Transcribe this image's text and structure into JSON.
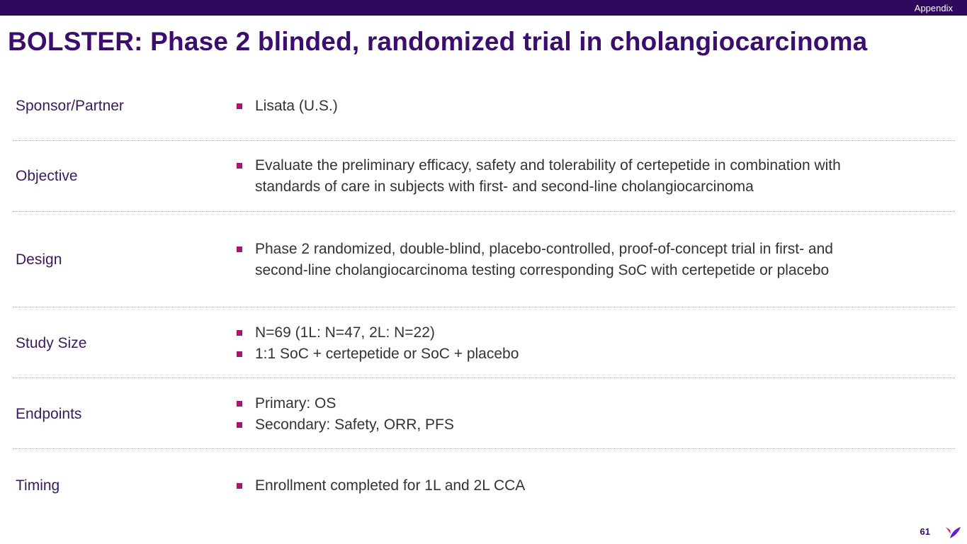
{
  "header": {
    "section": "Appendix",
    "title": "BOLSTER: Phase 2 blinded, randomized trial in cholangiocarcinoma"
  },
  "rows": [
    {
      "label": "Sponsor/Partner",
      "bullets": [
        "Lisata (U.S.)"
      ]
    },
    {
      "label": "Objective",
      "bullets": [
        "Evaluate the preliminary efficacy, safety and tolerability of certepetide in combination with",
        "standards of care in subjects with first- and second-line cholangiocarcinoma"
      ]
    },
    {
      "label": "Design",
      "bullets": [
        "Phase 2 randomized, double-blind, placebo-controlled, proof-of-concept trial in first- and",
        "second-line cholangiocarcinoma testing corresponding SoC with certepetide or placebo"
      ]
    },
    {
      "label": "Study Size",
      "bullets": [
        "N=69 (1L: N=47, 2L: N=22)",
        "1:1 SoC + certepetide or SoC + placebo"
      ]
    },
    {
      "label": "Endpoints",
      "bullets": [
        "Primary: OS",
        "Secondary:  Safety, ORR, PFS"
      ]
    },
    {
      "label": "Timing",
      "bullets": [
        "Enrollment completed for 1L and 2L CCA"
      ]
    }
  ],
  "footer": {
    "page": "61"
  },
  "colors": {
    "brand": "#2d0a5c",
    "title": "#3a0d6e",
    "bullet": "#a3176f"
  }
}
